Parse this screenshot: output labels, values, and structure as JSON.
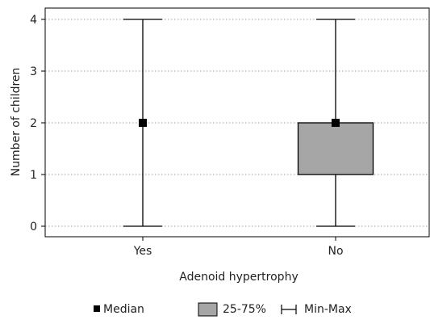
{
  "chart_data": {
    "type": "box",
    "xlabel": "Adenoid hypertrophy",
    "ylabel": "Number of children",
    "ylim": [
      0,
      4
    ],
    "yticks": [
      "0",
      "1",
      "2",
      "3",
      "4"
    ],
    "grid": "horizontal dotted",
    "legend_placement": "bottom",
    "legend": {
      "median": "Median",
      "box": "25-75%",
      "whisker": "Min-Max"
    },
    "categories": [
      "Yes",
      "No"
    ],
    "boxes": [
      {
        "category": "Yes",
        "min": 0,
        "q1": 2,
        "median": 2,
        "q3": 2,
        "max": 4
      },
      {
        "category": "No",
        "min": 0,
        "q1": 1,
        "median": 2,
        "q3": 2,
        "max": 4
      }
    ],
    "colors": {
      "box_fill": "#a6a6a6",
      "stroke": "#000000",
      "grid": "#999999"
    }
  }
}
